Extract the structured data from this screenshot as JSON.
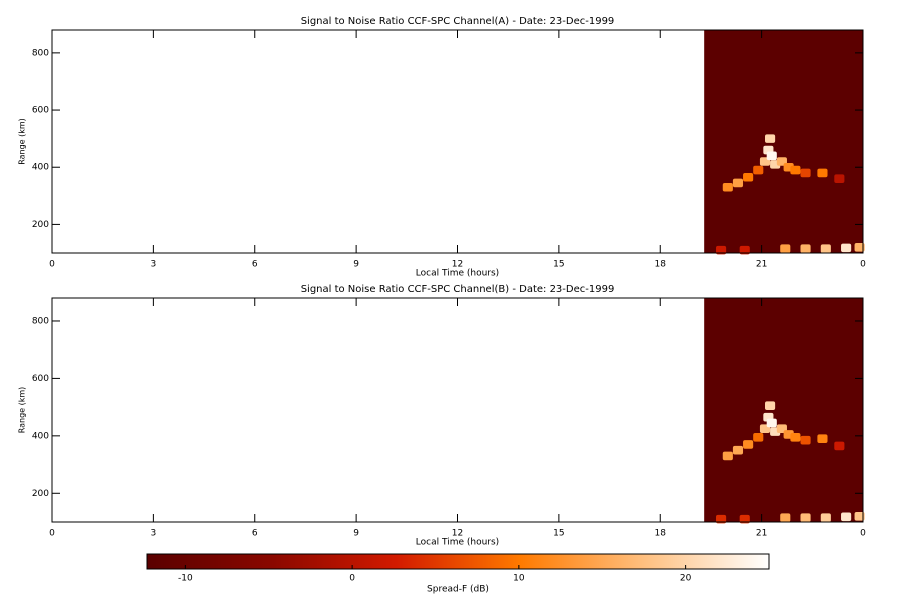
{
  "chart_data": [
    {
      "type": "heatmap",
      "title": "Signal to Noise Ratio CCF-SPC Channel(A) - Date: 23-Dec-1999",
      "xlabel": "Local Time (hours)",
      "ylabel": "Range (km)",
      "xlim": [
        0,
        24
      ],
      "xticks": [
        0,
        3,
        6,
        9,
        12,
        15,
        18,
        21,
        {
          "value": 24,
          "label": "0"
        }
      ],
      "ylim": [
        100,
        880
      ],
      "yticks": [
        200,
        400,
        600,
        800
      ],
      "coverage": [
        19.3,
        24
      ],
      "background": -12,
      "x": [
        20.0,
        20.3,
        20.6,
        20.9,
        21.1,
        21.2,
        21.25,
        21.3,
        21.4,
        21.6,
        21.8,
        22.0,
        22.3,
        22.8,
        23.3,
        19.8,
        20.5,
        21.7,
        22.3,
        22.9,
        23.5,
        23.9
      ],
      "y": [
        330,
        345,
        365,
        390,
        420,
        460,
        500,
        440,
        410,
        420,
        400,
        390,
        380,
        380,
        360,
        110,
        110,
        115,
        115,
        115,
        118,
        120
      ],
      "values": [
        12,
        14,
        10,
        8,
        18,
        22,
        20,
        24,
        20,
        16,
        12,
        10,
        6,
        10,
        0,
        2,
        2,
        14,
        16,
        18,
        22,
        16
      ]
    },
    {
      "type": "heatmap",
      "title": "Signal to Noise Ratio CCF-SPC Channel(B) - Date: 23-Dec-1999",
      "xlabel": "Local Time (hours)",
      "ylabel": "Range (km)",
      "xlim": [
        0,
        24
      ],
      "xticks": [
        0,
        3,
        6,
        9,
        12,
        15,
        18,
        21,
        {
          "value": 24,
          "label": "0"
        }
      ],
      "ylim": [
        100,
        880
      ],
      "yticks": [
        200,
        400,
        600,
        800
      ],
      "coverage": [
        19.3,
        24
      ],
      "background": -12,
      "x": [
        20.0,
        20.3,
        20.6,
        20.9,
        21.1,
        21.2,
        21.25,
        21.3,
        21.4,
        21.6,
        21.8,
        22.0,
        22.3,
        22.8,
        23.3,
        19.8,
        20.5,
        21.7,
        22.3,
        22.9,
        23.5,
        23.9
      ],
      "y": [
        330,
        350,
        370,
        395,
        425,
        465,
        505,
        445,
        415,
        425,
        405,
        395,
        385,
        390,
        365,
        110,
        110,
        115,
        115,
        115,
        118,
        120
      ],
      "values": [
        14,
        15,
        12,
        9,
        18,
        22,
        20,
        24,
        21,
        17,
        13,
        11,
        7,
        11,
        2,
        4,
        4,
        15,
        17,
        19,
        22,
        18
      ]
    },
    {
      "type": "colorbar",
      "xlabel": "Spread-F (dB)",
      "clim": [
        -12.3,
        25
      ],
      "ticks": [
        -10,
        0,
        10,
        20
      ],
      "colormap": [
        "#5a0000",
        "#8a0800",
        "#d21a00",
        "#ff7a00",
        "#ffc080",
        "#ffffff"
      ]
    }
  ]
}
